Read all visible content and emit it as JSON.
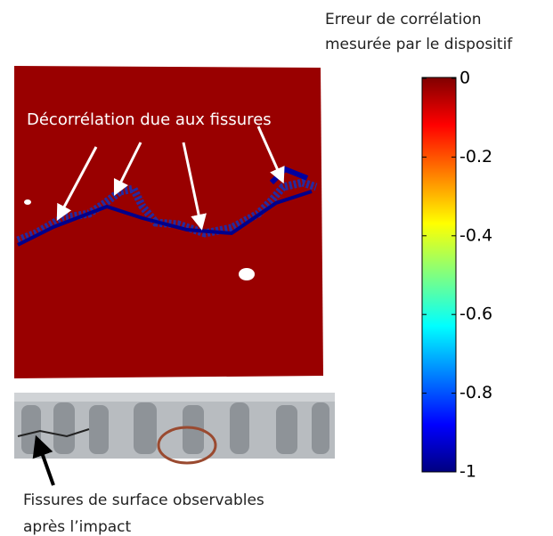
{
  "colorbar": {
    "title": [
      "Erreur de corrélation",
      "mesurée par le dispositif"
    ],
    "lim": [
      -1,
      0
    ],
    "ticks": [
      0,
      -0.2,
      -0.4,
      -0.6,
      -0.8,
      -1
    ]
  },
  "annotations": {
    "map_label": "Décorrélation due aux fissures",
    "photo_caption": [
      "Fissures de surface observables",
      "après l’impact"
    ]
  }
}
